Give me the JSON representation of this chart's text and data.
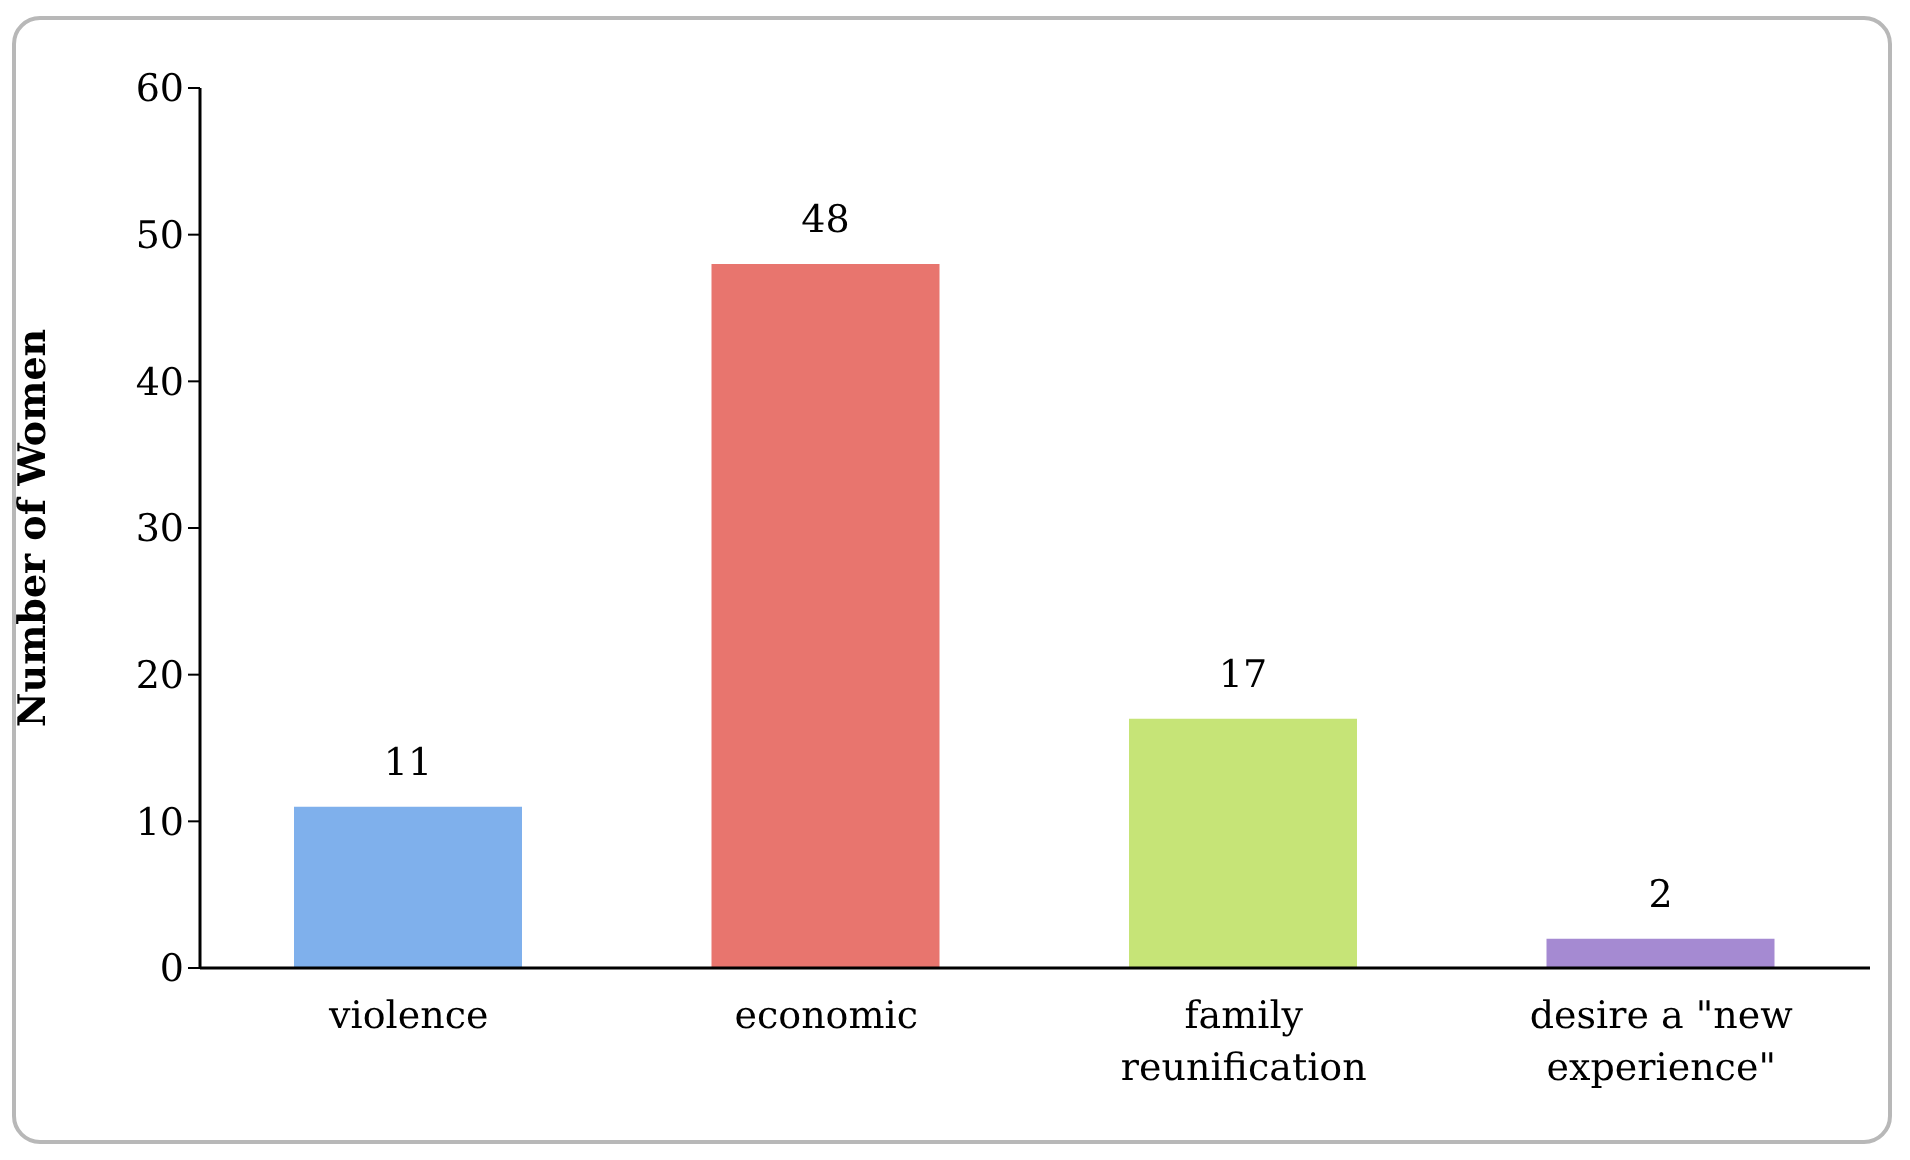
{
  "chart_data": {
    "type": "bar",
    "ylabel": "Number of Women",
    "categories": [
      "violence",
      "economic",
      "family reunification",
      "desire a \"new experience\""
    ],
    "values": [
      11,
      48,
      17,
      2
    ],
    "colors": [
      "#7fb0ec",
      "#e8756e",
      "#c6e477",
      "#a58ad2"
    ],
    "ylim": [
      0,
      60
    ],
    "yticks": [
      0,
      10,
      20,
      30,
      40,
      50,
      60
    ],
    "grid": false,
    "legend": false,
    "data_labels": true
  }
}
